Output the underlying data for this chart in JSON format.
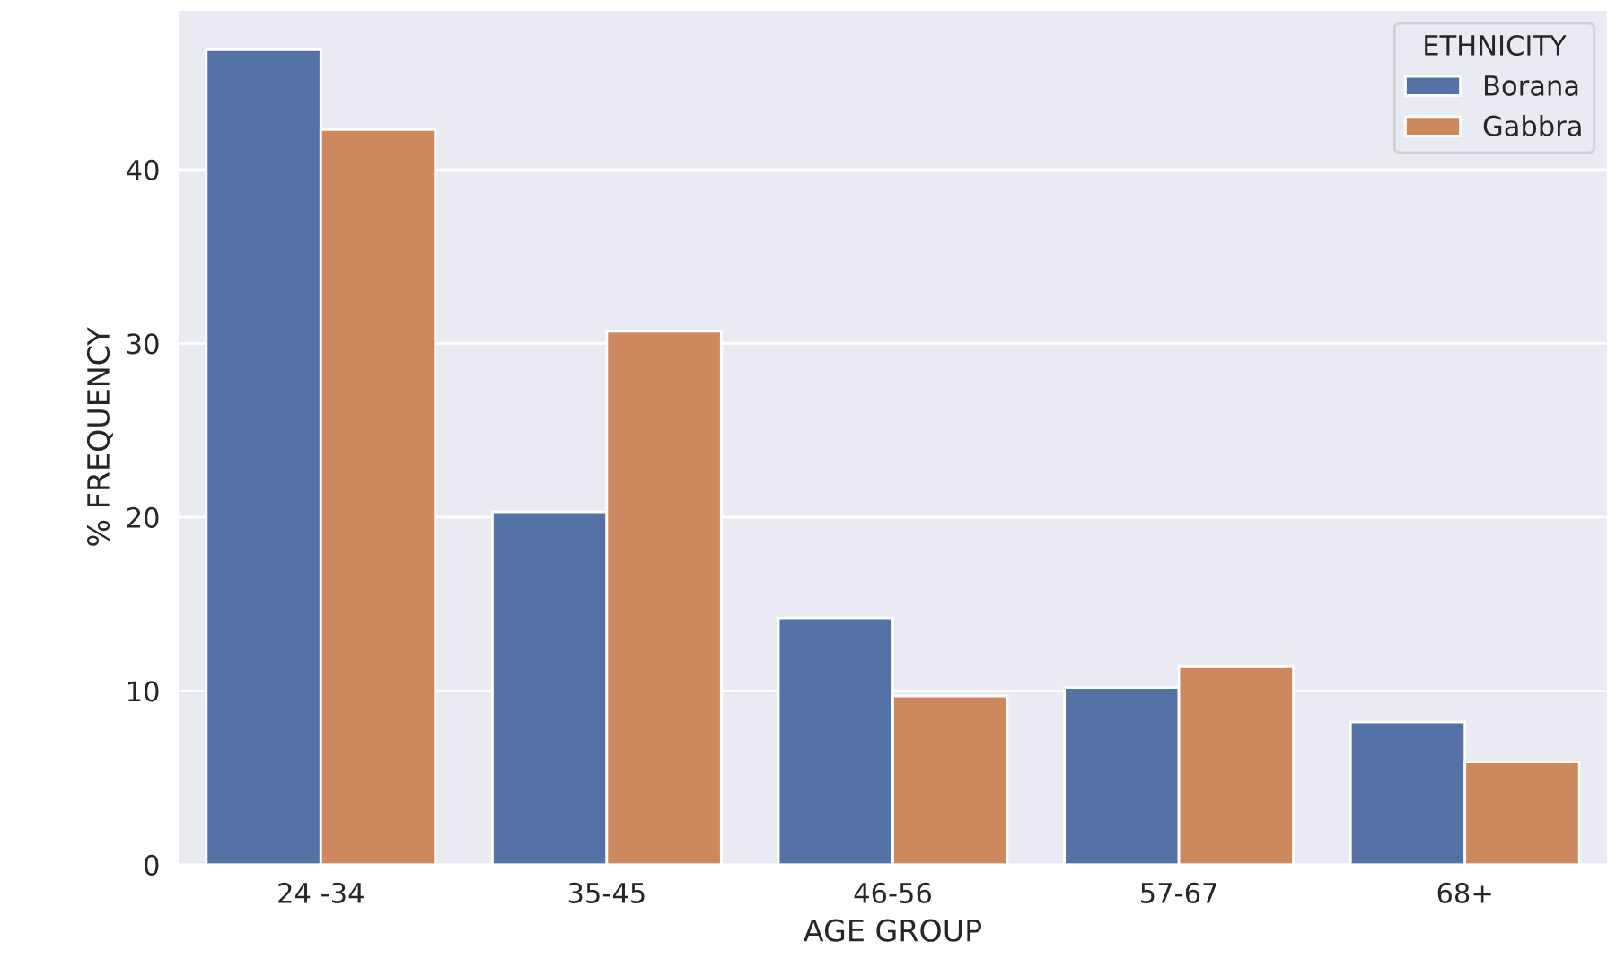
{
  "chart_data": {
    "type": "bar",
    "xlabel": "AGE GROUP",
    "ylabel": "% FREQUENCY",
    "legend_title": "ETHNICITY",
    "categories": [
      "24 -34",
      "35-45",
      "46-56",
      "57-67",
      "68+"
    ],
    "series": [
      {
        "name": "Borana",
        "color": "#5572a6",
        "values": [
          46.9,
          20.3,
          14.2,
          10.2,
          8.2
        ]
      },
      {
        "name": "Gabbra",
        "color": "#cd885e",
        "values": [
          42.3,
          30.7,
          9.7,
          11.4,
          5.9
        ]
      }
    ],
    "ylim": [
      0,
      49.2
    ],
    "yticks": [
      0,
      10,
      20,
      30,
      40
    ],
    "grid": "y",
    "legend": "top right"
  }
}
